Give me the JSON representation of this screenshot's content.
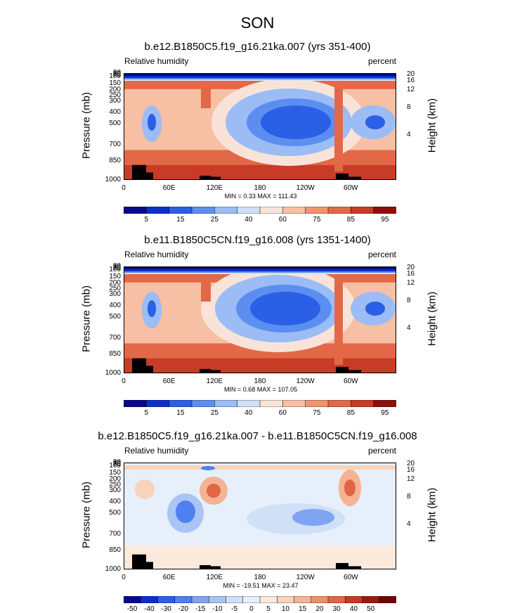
{
  "main_title": "SON",
  "chart_data": [
    {
      "type": "heatmap",
      "title": "b.e12.B1850C5.f19_g16.21ka.007 (yrs 351-400)",
      "left_label": "Relative humidity",
      "right_label": "percent",
      "ylabel": "Pressure (mb)",
      "ylabel_right": "Height (km)",
      "x_tick_labels": [
        "0",
        "60E",
        "120E",
        "180",
        "120W",
        "60W"
      ],
      "y_tick_labels": [
        "1000",
        "850",
        "700",
        "500",
        "400",
        "300",
        "250",
        "200",
        "150",
        "100",
        "70",
        "50",
        "30"
      ],
      "right_tick_labels": [
        "20",
        "16",
        "12",
        "8",
        "4"
      ],
      "min_max": "MIN =   0.33  MAX = 111.43",
      "colorbar_labels": [
        "5",
        "15",
        "25",
        "40",
        "60",
        "75",
        "85",
        "95"
      ],
      "colors": [
        "#08088c",
        "#0c2fca",
        "#2a5fe6",
        "#5c8ef0",
        "#9bbcf5",
        "#cfe0f7",
        "#f9e3d9",
        "#f7bfa3",
        "#f2936e",
        "#e36848",
        "#c73b27",
        "#8e0f0b"
      ],
      "min": 0.33,
      "max": 111.43
    },
    {
      "type": "heatmap",
      "title": "b.e11.B1850C5CN.f19_g16.008 (yrs 1351-1400)",
      "left_label": "Relative humidity",
      "right_label": "percent",
      "ylabel": "Pressure (mb)",
      "ylabel_right": "Height (km)",
      "x_tick_labels": [
        "0",
        "60E",
        "120E",
        "180",
        "120W",
        "60W"
      ],
      "y_tick_labels": [
        "1000",
        "850",
        "700",
        "500",
        "400",
        "300",
        "250",
        "200",
        "150",
        "100",
        "70",
        "50",
        "30"
      ],
      "right_tick_labels": [
        "20",
        "16",
        "12",
        "8",
        "4"
      ],
      "min_max": "MIN =   0.68  MAX = 107.05",
      "colorbar_labels": [
        "5",
        "15",
        "25",
        "40",
        "60",
        "75",
        "85",
        "95"
      ],
      "colors": [
        "#08088c",
        "#0c2fca",
        "#2a5fe6",
        "#5c8ef0",
        "#9bbcf5",
        "#cfe0f7",
        "#f9e3d9",
        "#f7bfa3",
        "#f2936e",
        "#e36848",
        "#c73b27",
        "#8e0f0b"
      ],
      "min": 0.68,
      "max": 107.05
    },
    {
      "type": "heatmap",
      "title": "b.e12.B1850C5.f19_g16.21ka.007 - b.e11.B1850C5CN.f19_g16.008",
      "left_label": "Relative humidity",
      "right_label": "percent",
      "ylabel": "Pressure (mb)",
      "ylabel_right": "Height (km)",
      "x_tick_labels": [
        "0",
        "60E",
        "120E",
        "180",
        "120W",
        "60W"
      ],
      "y_tick_labels": [
        "1000",
        "850",
        "700",
        "500",
        "400",
        "300",
        "250",
        "200",
        "150",
        "100",
        "70",
        "50",
        "30"
      ],
      "right_tick_labels": [
        "20",
        "16",
        "12",
        "8",
        "4"
      ],
      "min_max": "MIN = -19.51  MAX =  23.47",
      "colorbar_labels": [
        "-50",
        "-40",
        "-30",
        "-20",
        "-15",
        "-10",
        "-5",
        "0",
        "5",
        "10",
        "15",
        "20",
        "30",
        "40",
        "50"
      ],
      "colors": [
        "#08088c",
        "#0c2fca",
        "#2a5fe6",
        "#4f7ff0",
        "#7ea4f3",
        "#a9c5f6",
        "#cfe0f7",
        "#e6effa",
        "#fbeadc",
        "#f9d2bb",
        "#f5b394",
        "#ee8f69",
        "#e06645",
        "#c53a26",
        "#9a1a10",
        "#6e0606"
      ],
      "min": -19.51,
      "max": 23.47
    }
  ]
}
